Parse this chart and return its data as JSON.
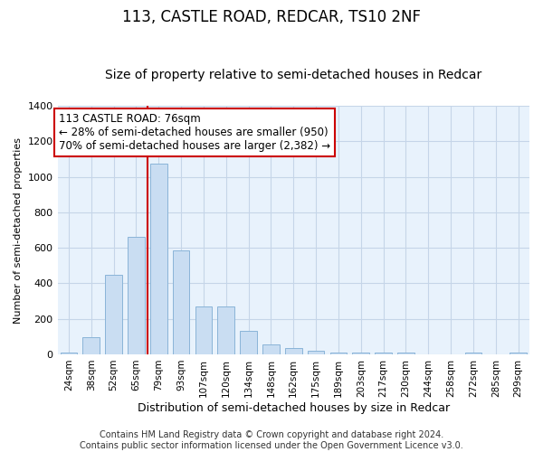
{
  "title": "113, CASTLE ROAD, REDCAR, TS10 2NF",
  "subtitle": "Size of property relative to semi-detached houses in Redcar",
  "xlabel": "Distribution of semi-detached houses by size in Redcar",
  "ylabel": "Number of semi-detached properties",
  "bar_labels": [
    "24sqm",
    "38sqm",
    "52sqm",
    "65sqm",
    "79sqm",
    "93sqm",
    "107sqm",
    "120sqm",
    "134sqm",
    "148sqm",
    "162sqm",
    "175sqm",
    "189sqm",
    "203sqm",
    "217sqm",
    "230sqm",
    "244sqm",
    "258sqm",
    "272sqm",
    "285sqm",
    "299sqm"
  ],
  "bar_values": [
    10,
    95,
    450,
    660,
    1075,
    585,
    270,
    270,
    130,
    55,
    35,
    20,
    12,
    10,
    10,
    8,
    0,
    0,
    8,
    0,
    8
  ],
  "bar_color": "#c9ddf2",
  "bar_edge_color": "#8ab4d8",
  "vline_color": "#cc0000",
  "annotation_text": "113 CASTLE ROAD: 76sqm\n← 28% of semi-detached houses are smaller (950)\n70% of semi-detached houses are larger (2,382) →",
  "annotation_box_facecolor": "#ffffff",
  "annotation_box_edgecolor": "#cc0000",
  "ylim": [
    0,
    1400
  ],
  "yticks": [
    0,
    200,
    400,
    600,
    800,
    1000,
    1200,
    1400
  ],
  "grid_color": "#c5d5e8",
  "background_color": "#e8f2fc",
  "footer_text": "Contains HM Land Registry data © Crown copyright and database right 2024.\nContains public sector information licensed under the Open Government Licence v3.0.",
  "title_fontsize": 12,
  "subtitle_fontsize": 10,
  "annotation_fontsize": 8.5,
  "ylabel_fontsize": 8,
  "xlabel_fontsize": 9,
  "footer_fontsize": 7,
  "tick_fontsize": 7.5,
  "ytick_fontsize": 8
}
